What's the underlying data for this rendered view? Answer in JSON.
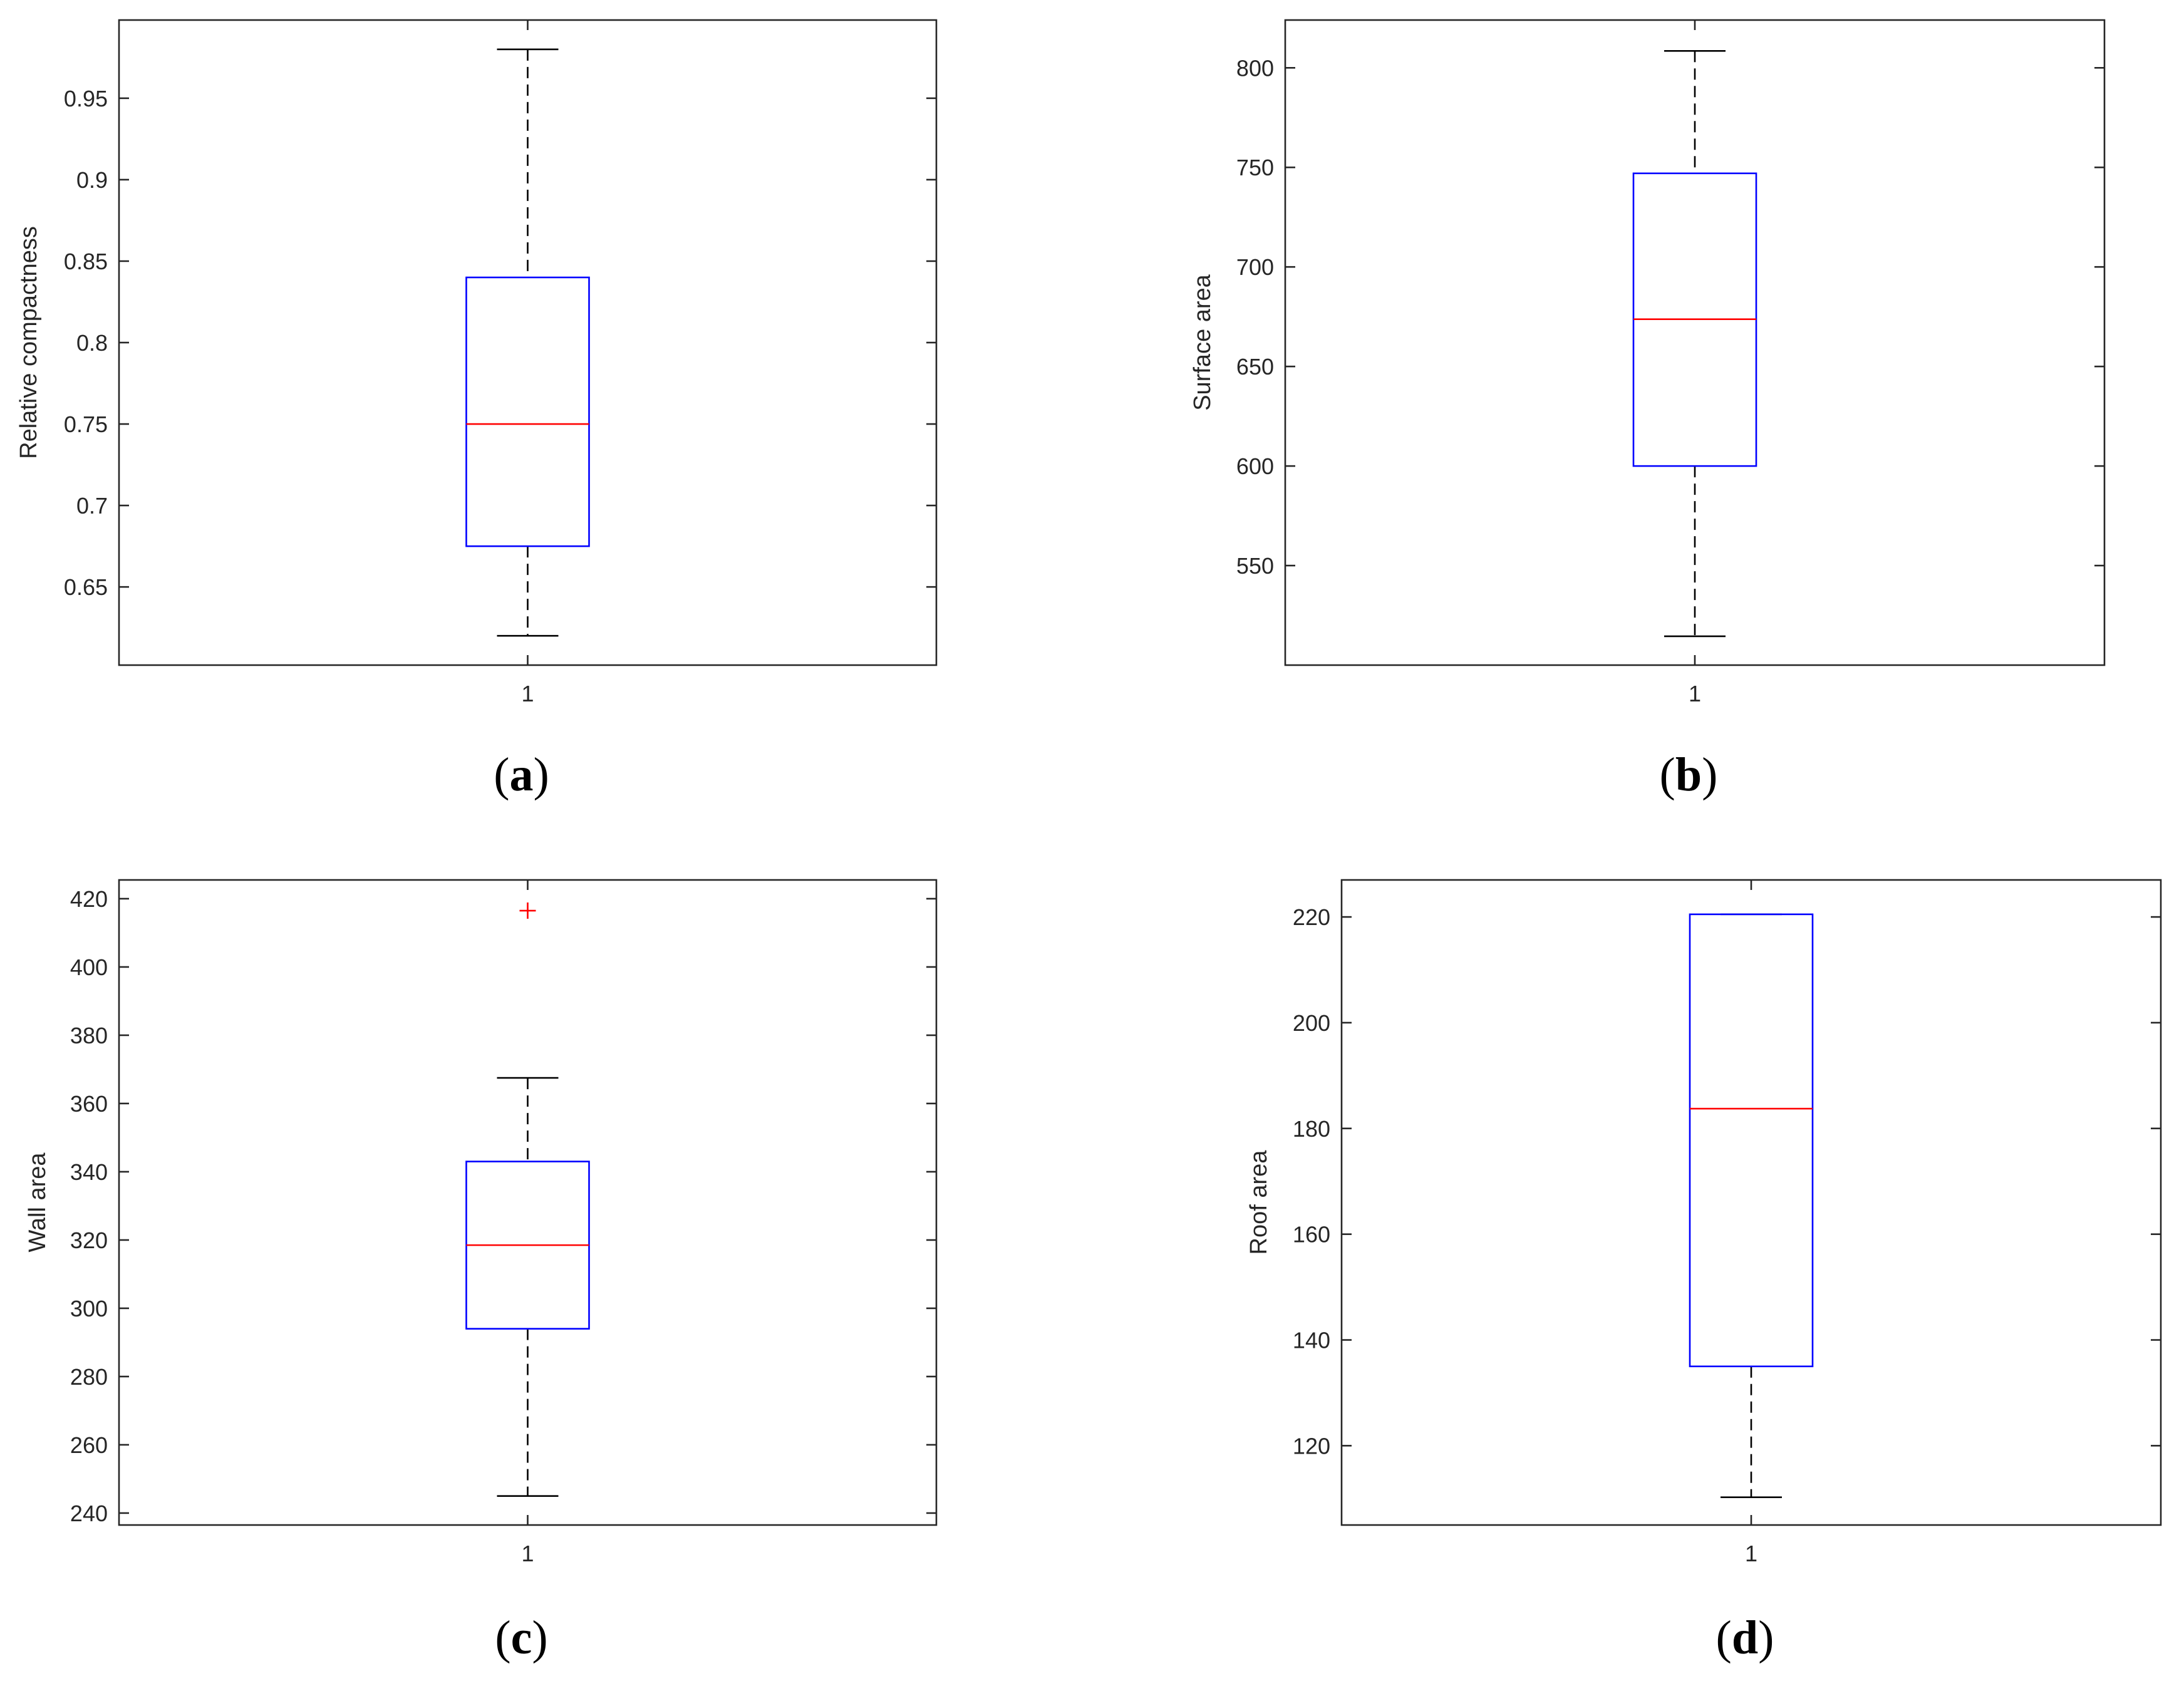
{
  "chart_data": [
    {
      "type": "box",
      "caption_letter": "a",
      "ylabel": "Relative compactness",
      "ylim": [
        0.602,
        0.998
      ],
      "yticks": [
        "0.65",
        "0.7",
        "0.75",
        "0.8",
        "0.85",
        "0.9",
        "0.95"
      ],
      "categories": [
        "1"
      ],
      "box": {
        "min": 0.62,
        "q1": 0.675,
        "median": 0.75,
        "q3": 0.84,
        "max": 0.98
      },
      "outliers": []
    },
    {
      "type": "box",
      "caption_letter": "b",
      "ylabel": "Surface area",
      "ylim": [
        500,
        824
      ],
      "yticks": [
        "550",
        "600",
        "650",
        "700",
        "750",
        "800"
      ],
      "categories": [
        "1"
      ],
      "box": {
        "min": 514.5,
        "q1": 600,
        "median": 673.75,
        "q3": 747,
        "max": 808.5
      },
      "outliers": []
    },
    {
      "type": "box",
      "caption_letter": "c",
      "ylabel": "Wall area",
      "ylim": [
        236.5,
        425.5
      ],
      "yticks": [
        "240",
        "260",
        "280",
        "300",
        "320",
        "340",
        "360",
        "380",
        "400",
        "420"
      ],
      "categories": [
        "1"
      ],
      "box": {
        "min": 245,
        "q1": 294,
        "median": 318.5,
        "q3": 343,
        "max": 367.5
      },
      "outliers": [
        416.5
      ]
    },
    {
      "type": "box",
      "caption_letter": "d",
      "ylabel": "Roof area",
      "ylim": [
        105,
        227
      ],
      "yticks": [
        "120",
        "140",
        "160",
        "180",
        "200",
        "220"
      ],
      "categories": [
        "1"
      ],
      "box": {
        "min": 110.25,
        "q1": 135,
        "median": 183.75,
        "q3": 220.5,
        "max": 220.5
      },
      "outliers": []
    }
  ],
  "colors": {
    "box": "#0000ff",
    "median": "#ff0000",
    "whisker": "#000000",
    "outlier": "#ff0000",
    "axis": "#262626"
  }
}
